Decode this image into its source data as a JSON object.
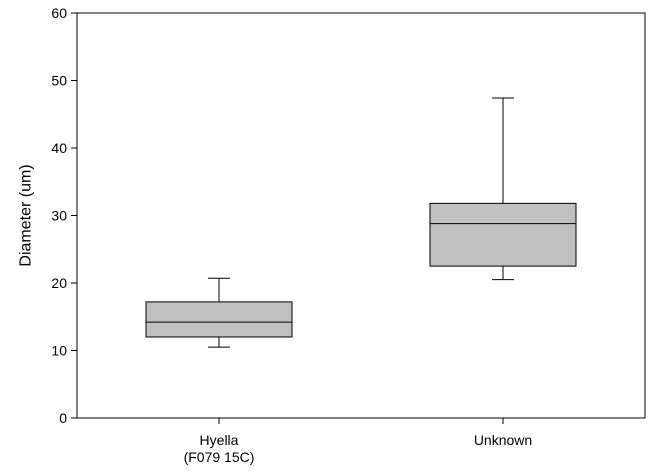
{
  "chart_data": {
    "type": "box",
    "title": "",
    "xlabel": "",
    "ylabel": "Diameter (um)",
    "ylim": [
      0,
      60
    ],
    "yticks": [
      0,
      10,
      20,
      30,
      40,
      50,
      60
    ],
    "grid": false,
    "categories": [
      {
        "label_lines": [
          "Hyella",
          "(F079 15C)"
        ]
      },
      {
        "label_lines": [
          "Unknown"
        ]
      }
    ],
    "boxes": [
      {
        "whisker_low": 10.5,
        "q1": 12.0,
        "median": 14.2,
        "q3": 17.2,
        "whisker_high": 20.7
      },
      {
        "whisker_low": 20.5,
        "q1": 22.5,
        "median": 28.8,
        "q3": 31.8,
        "whisker_high": 47.4
      }
    ],
    "colors": {
      "box_fill": "#c0c0c0",
      "stroke": "#000000"
    }
  }
}
